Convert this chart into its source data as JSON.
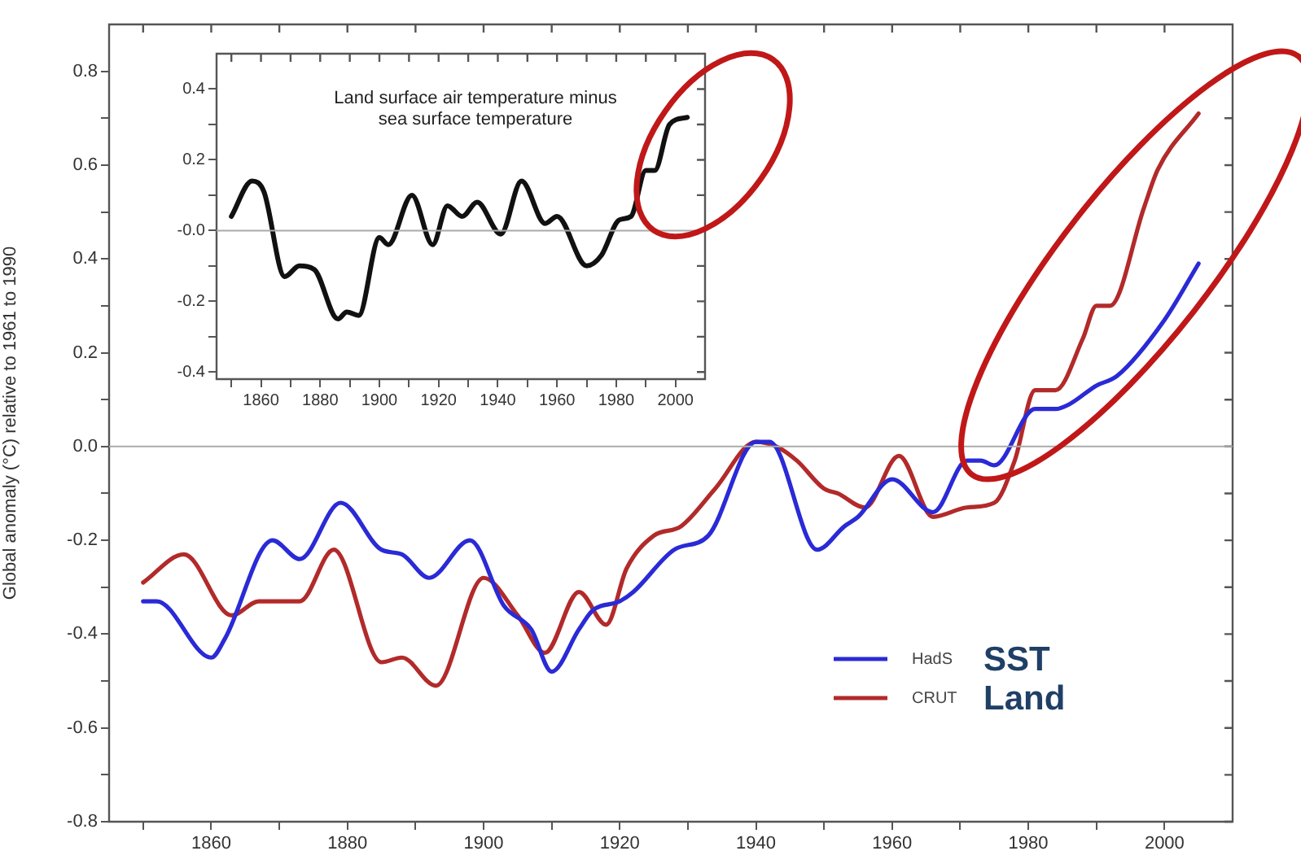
{
  "chart_data": [
    {
      "type": "line",
      "ylabel": "Global anomaly (°C) relative to 1961 to 1990",
      "xlim": [
        1845,
        2010
      ],
      "ylim": [
        -0.8,
        0.9
      ],
      "xticks": [
        {
          "value": 1850,
          "label": null
        },
        1860,
        {
          "value": 1870,
          "label": null
        },
        1880,
        {
          "value": 1890,
          "label": null
        },
        1900,
        {
          "value": 1910,
          "label": null
        },
        1920,
        {
          "value": 1930,
          "label": null
        },
        1940,
        {
          "value": 1950,
          "label": null
        },
        1960,
        {
          "value": 1970,
          "label": null
        },
        1980,
        {
          "value": 1990,
          "label": null
        },
        2000
      ],
      "yticks": [
        -0.8,
        {
          "value": -0.7,
          "label": null
        },
        -0.6,
        {
          "value": -0.5,
          "label": null
        },
        -0.4,
        {
          "value": -0.3,
          "label": null
        },
        -0.2,
        {
          "value": -0.1,
          "label": null
        },
        {
          "value": 0,
          "label": "0.0"
        },
        {
          "value": 0.1,
          "label": null
        },
        0.2,
        {
          "value": 0.3,
          "label": null
        },
        0.4,
        {
          "value": 0.5,
          "label": null
        },
        0.6,
        {
          "value": 0.7,
          "label": null
        },
        0.8
      ],
      "grid": false,
      "legend": "bottom right",
      "line_style": "solid",
      "marker": "none",
      "ref_lines": [
        {
          "axis": "y",
          "value": 0,
          "color": "#aaaaaa"
        }
      ],
      "annotations": [
        "SST",
        "Land"
      ],
      "series": [
        {
          "name": "HadS",
          "color": "#2a2ad6",
          "x": [
            1850,
            1852,
            1860,
            1862,
            1869,
            1873,
            1879,
            1885,
            1888,
            1892,
            1898,
            1903,
            1907,
            1910,
            1914,
            1916,
            1920,
            1922,
            1928,
            1933,
            1940,
            1942,
            1949,
            1953,
            1955,
            1960,
            1966,
            1971,
            1973,
            1975,
            1981,
            1984,
            1986,
            1990,
            1993,
            2000,
            2005
          ],
          "values": [
            -0.33,
            -0.33,
            -0.45,
            -0.41,
            -0.2,
            -0.24,
            -0.12,
            -0.22,
            -0.23,
            -0.28,
            -0.2,
            -0.34,
            -0.39,
            -0.48,
            -0.39,
            -0.35,
            -0.33,
            -0.31,
            -0.22,
            -0.19,
            0.01,
            0.01,
            -0.22,
            -0.17,
            -0.15,
            -0.07,
            -0.14,
            -0.03,
            -0.03,
            -0.04,
            0.08,
            0.08,
            0.09,
            0.13,
            0.15,
            0.27,
            0.39
          ]
        },
        {
          "name": "CRUT",
          "color": "#b22a2a",
          "x": [
            1850,
            1856,
            1863,
            1867,
            1873,
            1878,
            1885,
            1888,
            1893,
            1900,
            1905,
            1909,
            1914,
            1918,
            1921,
            1925,
            1929,
            1934,
            1940,
            1943,
            1946,
            1950,
            1952,
            1956,
            1961,
            1966,
            1971,
            1975,
            1978,
            1981,
            1984,
            1988,
            1990,
            1992,
            1997,
            1999,
            2005
          ],
          "values": [
            -0.29,
            -0.23,
            -0.36,
            -0.33,
            -0.33,
            -0.22,
            -0.46,
            -0.45,
            -0.51,
            -0.28,
            -0.36,
            -0.44,
            -0.31,
            -0.38,
            -0.26,
            -0.19,
            -0.17,
            -0.09,
            0.01,
            0,
            -0.03,
            -0.09,
            -0.1,
            -0.13,
            -0.02,
            -0.15,
            -0.13,
            -0.12,
            -0.03,
            0.12,
            0.12,
            0.23,
            0.3,
            0.3,
            0.51,
            0.59,
            0.71
          ]
        }
      ]
    },
    {
      "type": "line",
      "title": "Land surface air temperature minus\nsea surface temperature",
      "xlim": [
        1845,
        2010
      ],
      "ylim": [
        -0.42,
        0.5
      ],
      "xticks": [
        {
          "value": 1850,
          "label": null
        },
        1860,
        {
          "value": 1870,
          "label": null
        },
        1880,
        {
          "value": 1890,
          "label": null
        },
        1900,
        {
          "value": 1910,
          "label": null
        },
        1920,
        {
          "value": 1930,
          "label": null
        },
        1940,
        {
          "value": 1950,
          "label": null
        },
        1960,
        {
          "value": 1970,
          "label": null
        },
        1980,
        {
          "value": 1990,
          "label": null
        },
        2000
      ],
      "yticks": [
        -0.4,
        {
          "value": -0.3,
          "label": null
        },
        -0.2,
        {
          "value": -0.1,
          "label": null
        },
        {
          "value": 0,
          "label": "-0.0"
        },
        {
          "value": 0.1,
          "label": null
        },
        0.2,
        {
          "value": 0.3,
          "label": null
        },
        0.4
      ],
      "grid": false,
      "legend": false,
      "line_style": "solid",
      "marker": "none",
      "ref_lines": [
        {
          "axis": "y",
          "value": 0,
          "color": "#aaaaaa"
        }
      ],
      "series": [
        {
          "color": "#111111",
          "x": [
            1850,
            1857,
            1861,
            1868,
            1873,
            1878,
            1886,
            1889,
            1893,
            1900,
            1903,
            1911,
            1918,
            1923,
            1928,
            1933,
            1941,
            1948,
            1956,
            1960,
            1970,
            1975,
            1981,
            1985,
            1990,
            1993,
            1998,
            2004
          ],
          "values": [
            0.04,
            0.14,
            0.11,
            -0.13,
            -0.1,
            -0.11,
            -0.25,
            -0.23,
            -0.24,
            -0.02,
            -0.04,
            0.1,
            -0.04,
            0.07,
            0.04,
            0.08,
            -0.01,
            0.14,
            0.02,
            0.04,
            -0.1,
            -0.07,
            0.03,
            0.04,
            0.17,
            0.17,
            0.3,
            0.32
          ]
        }
      ]
    }
  ]
}
